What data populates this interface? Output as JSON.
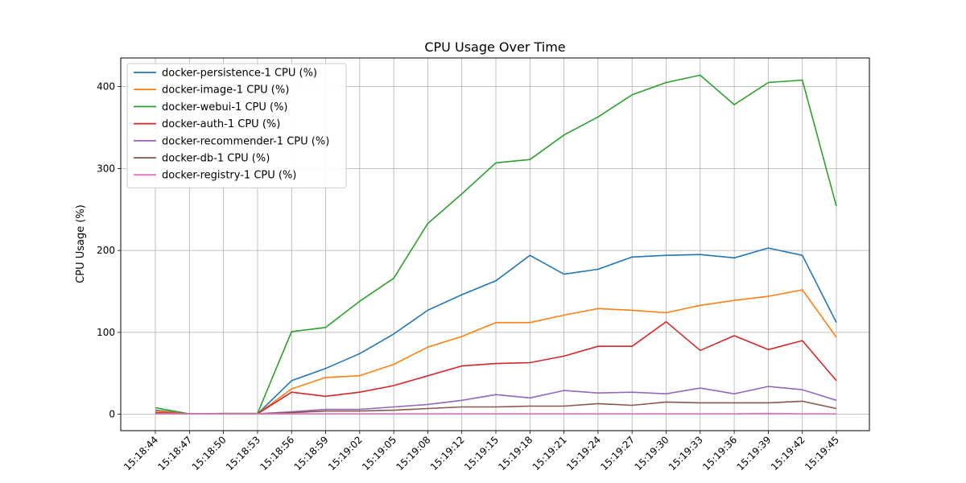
{
  "chart_data": {
    "type": "line",
    "title": "CPU Usage Over Time",
    "xlabel": "",
    "ylabel": "CPU Usage (%)",
    "ylim": [
      -20,
      435
    ],
    "yticks": [
      0,
      100,
      200,
      300,
      400
    ],
    "grid": true,
    "legend_position": "upper-left",
    "categories": [
      "15:18:44",
      "15:18:47",
      "15:18:50",
      "15:18:53",
      "15:18:56",
      "15:18:59",
      "15:19:02",
      "15:19:05",
      "15:19:08",
      "15:19:12",
      "15:19:15",
      "15:19:18",
      "15:19:21",
      "15:19:24",
      "15:19:27",
      "15:19:30",
      "15:19:33",
      "15:19:36",
      "15:19:39",
      "15:19:42",
      "15:19:45"
    ],
    "series": [
      {
        "name": "docker-persistence-1 CPU (%)",
        "color": "#1f77b4",
        "values": [
          5,
          0.5,
          0.5,
          0.5,
          41,
          56,
          74,
          98,
          127,
          146,
          163,
          194,
          171,
          177,
          192,
          194,
          195,
          191,
          203,
          194,
          112
        ]
      },
      {
        "name": "docker-image-1 CPU (%)",
        "color": "#ff7f0e",
        "values": [
          4,
          0.5,
          0.5,
          0.5,
          31,
          45,
          47,
          61,
          82,
          95,
          112,
          112,
          121,
          129,
          127,
          124,
          133,
          139,
          144,
          152,
          94
        ]
      },
      {
        "name": "docker-webui-1 CPU (%)",
        "color": "#2ca02c",
        "values": [
          8,
          0.5,
          1,
          1,
          101,
          106,
          138,
          166,
          233,
          269,
          307,
          311,
          341,
          363,
          390,
          405,
          414,
          378,
          405,
          408,
          254
        ]
      },
      {
        "name": "docker-auth-1 CPU (%)",
        "color": "#d62728",
        "values": [
          2,
          0.5,
          0.5,
          0.5,
          27,
          22,
          27,
          35,
          47,
          59,
          62,
          63,
          71,
          83,
          83,
          113,
          78,
          96,
          79,
          90,
          41
        ]
      },
      {
        "name": "docker-recommender-1 CPU (%)",
        "color": "#9467bd",
        "values": [
          1,
          0.5,
          0.5,
          0.5,
          3,
          6,
          6,
          9,
          12,
          17,
          24,
          20,
          29,
          26,
          27,
          25,
          32,
          25,
          34,
          30,
          17
        ]
      },
      {
        "name": "docker-db-1 CPU (%)",
        "color": "#8c564b",
        "values": [
          1,
          0.5,
          0.5,
          0.5,
          2,
          4,
          4,
          5,
          7,
          9,
          9,
          10,
          10,
          13,
          11,
          15,
          14,
          14,
          14,
          16,
          7
        ]
      },
      {
        "name": "docker-registry-1 CPU (%)",
        "color": "#e377c2",
        "values": [
          0.5,
          0.5,
          0.5,
          0.5,
          0.5,
          0.5,
          0.5,
          0.5,
          0.5,
          0.5,
          0.5,
          0.5,
          0.5,
          0.5,
          0.5,
          0.5,
          0.5,
          0.5,
          1,
          0.5,
          0.5
        ]
      }
    ]
  }
}
